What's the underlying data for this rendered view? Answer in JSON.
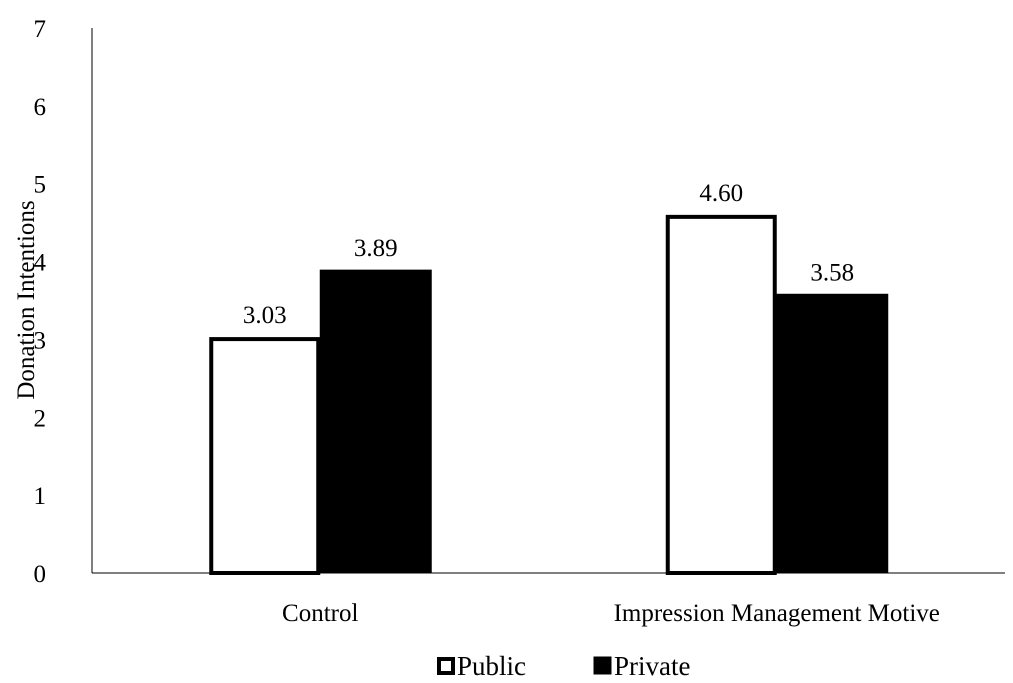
{
  "chart_data": {
    "type": "bar",
    "ylabel": "Donation Intentions",
    "ylim": [
      0,
      7
    ],
    "yticks": [
      0,
      1,
      2,
      3,
      4,
      5,
      6,
      7
    ],
    "categories": [
      "Control",
      "Impression Management Motive"
    ],
    "series": [
      {
        "name": "Public",
        "values": [
          3.03,
          4.6
        ],
        "labels": [
          "3.03",
          "4.60"
        ],
        "fill": "#ffffff",
        "stroke": "#000000"
      },
      {
        "name": "Private",
        "values": [
          3.89,
          3.58
        ],
        "labels": [
          "3.89",
          "3.58"
        ],
        "fill": "#000000",
        "stroke": "#000000"
      }
    ],
    "legend_position": "bottom",
    "grid": false
  }
}
